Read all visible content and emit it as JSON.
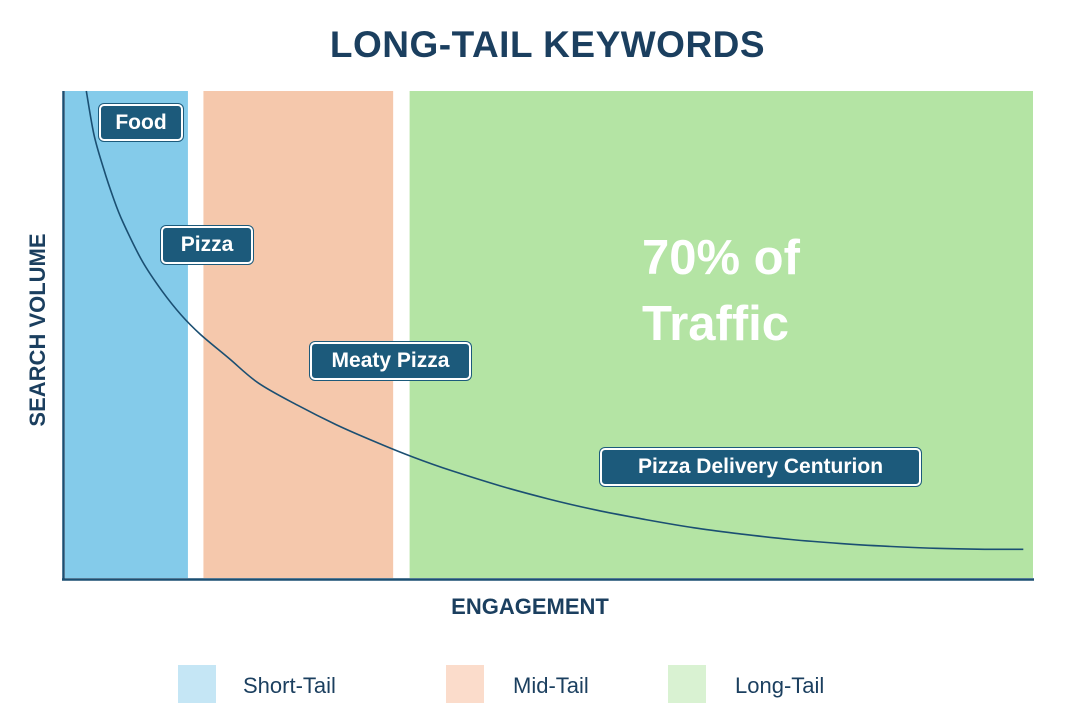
{
  "chart_data": {
    "type": "area",
    "title": "LONG-TAIL KEYWORDS",
    "xlabel": "ENGAGEMENT",
    "ylabel": "SEARCH VOLUME",
    "xlim": [
      0,
      100
    ],
    "ylim": [
      0,
      100
    ],
    "grid": false,
    "regions": [
      {
        "name": "Short-Tail",
        "x_start": 0,
        "x_end": 12.7,
        "color": "#84cbea"
      },
      {
        "name": "Mid-Tail",
        "x_start": 14.3,
        "x_end": 33.9,
        "color": "#f5c8ac"
      },
      {
        "name": "Long-Tail",
        "x_start": 35.6,
        "x_end": 100,
        "color": "#b4e4a4"
      }
    ],
    "curve": {
      "description": "search volume decreasing with engagement",
      "x": [
        2.2,
        3,
        4,
        5,
        6,
        8,
        10,
        12,
        14,
        17,
        20,
        24,
        28,
        32,
        36,
        40,
        45,
        50,
        55,
        60,
        65,
        70,
        75,
        80,
        85,
        90,
        95,
        99
      ],
      "y": [
        100,
        91,
        84,
        78,
        73,
        65,
        59,
        54,
        50,
        45,
        40,
        35.5,
        31.5,
        28,
        24.8,
        22,
        18.9,
        16.2,
        13.9,
        12,
        10.3,
        9,
        7.9,
        7.1,
        6.5,
        6.1,
        5.9,
        5.9
      ],
      "color": "#1b4f72"
    },
    "keywords": [
      {
        "label": "Food",
        "x": 8,
        "y": 93
      },
      {
        "label": "Pizza",
        "x": 15,
        "y": 68
      },
      {
        "label": "Meaty Pizza",
        "x": 34,
        "y": 44.5
      },
      {
        "label": "Pizza Delivery Centurion",
        "x": 72.5,
        "y": 22.5
      }
    ],
    "annotation": {
      "line1": "70% of",
      "line2": "Traffic"
    },
    "legend": [
      {
        "label": "Short-Tail",
        "color": "#c5e6f5"
      },
      {
        "label": "Mid-Tail",
        "color": "#fbdccb"
      },
      {
        "label": "Long-Tail",
        "color": "#d9f2d2"
      }
    ],
    "legend_position": "bottom"
  }
}
